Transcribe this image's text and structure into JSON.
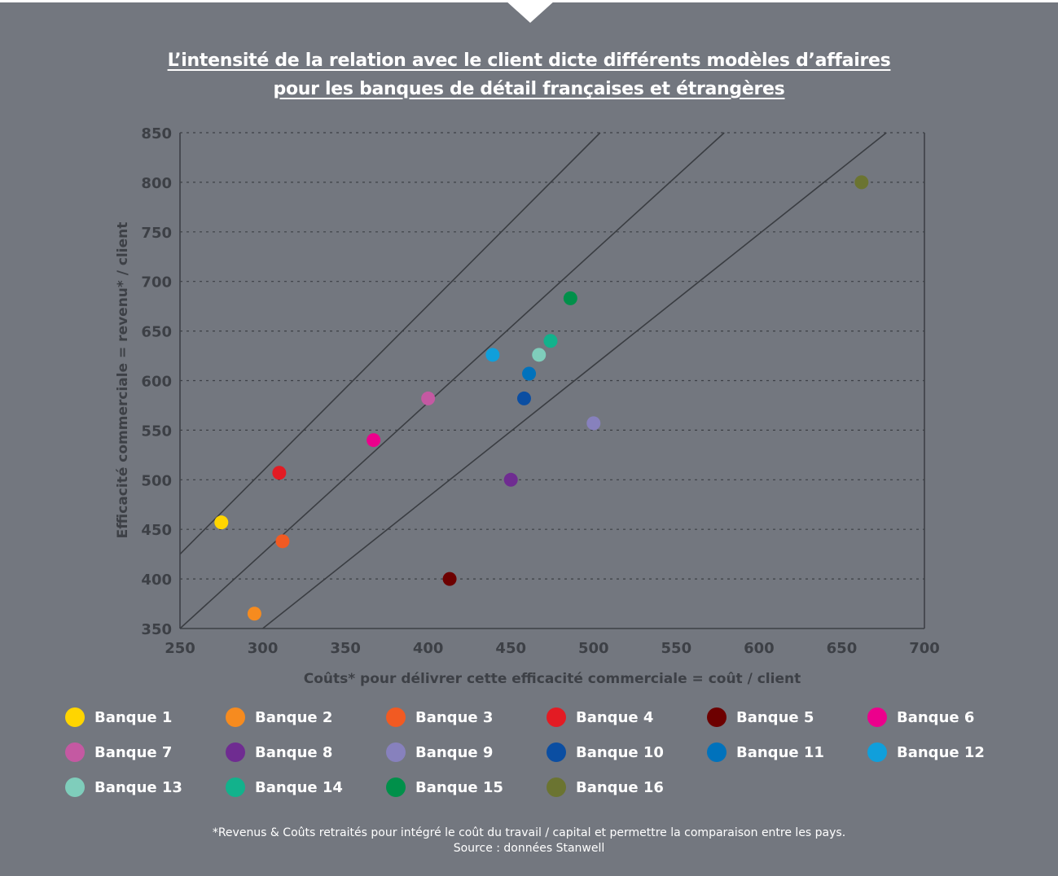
{
  "header": {
    "title_line1": "L’intensité de la relation avec le client dicte différents modèles d’affaires",
    "title_line2": "pour les banques de détail françaises et étrangères"
  },
  "colors": {
    "background": "#73777f",
    "axis": "#3d4046",
    "text": "#ffffff"
  },
  "chart_data": {
    "type": "scatter",
    "title": "L’intensité de la relation avec le client dicte différents modèles d’affaires pour les banques de détail françaises et étrangères",
    "xlabel": "Coûts* pour délivrer cette efficacité commerciale = coût / client",
    "ylabel": "Efficacité commerciale = revenu* / client",
    "xlim": [
      250,
      700
    ],
    "ylim": [
      350,
      850
    ],
    "xticks": [
      250,
      300,
      350,
      400,
      450,
      500,
      550,
      600,
      650,
      700
    ],
    "yticks": [
      350,
      400,
      450,
      500,
      550,
      600,
      650,
      700,
      750,
      800,
      850
    ],
    "grid": "horizontal-dotted",
    "legend_position": "bottom",
    "series": [
      {
        "name": "Banque 1",
        "color": "#ffd500",
        "x": 275,
        "y": 457
      },
      {
        "name": "Banque 2",
        "color": "#f68b1f",
        "x": 295,
        "y": 365
      },
      {
        "name": "Banque 3",
        "color": "#f15a22",
        "x": 312,
        "y": 438
      },
      {
        "name": "Banque 4",
        "color": "#e31b23",
        "x": 310,
        "y": 507
      },
      {
        "name": "Banque 5",
        "color": "#6d0000",
        "x": 413,
        "y": 400
      },
      {
        "name": "Banque 6",
        "color": "#ec008c",
        "x": 367,
        "y": 540
      },
      {
        "name": "Banque 7",
        "color": "#c459a2",
        "x": 400,
        "y": 582
      },
      {
        "name": "Banque 8",
        "color": "#6f2c91",
        "x": 450,
        "y": 500
      },
      {
        "name": "Banque 9",
        "color": "#8781bd",
        "x": 500,
        "y": 557
      },
      {
        "name": "Banque 10",
        "color": "#0b4ea2",
        "x": 458,
        "y": 582
      },
      {
        "name": "Banque 11",
        "color": "#0072bc",
        "x": 461,
        "y": 607
      },
      {
        "name": "Banque 12",
        "color": "#109fdb",
        "x": 439,
        "y": 626
      },
      {
        "name": "Banque 13",
        "color": "#7fcdbb",
        "x": 467,
        "y": 626
      },
      {
        "name": "Banque 14",
        "color": "#12b28c",
        "x": 474,
        "y": 640
      },
      {
        "name": "Banque 15",
        "color": "#00904a",
        "x": 486,
        "y": 683
      },
      {
        "name": "Banque 16",
        "color": "#6b7431",
        "x": 662,
        "y": 800
      }
    ],
    "reference_lines": [
      {
        "name": "ligne-1",
        "from": [
          250,
          425
        ],
        "to": [
          504,
          850
        ]
      },
      {
        "name": "ligne-2",
        "from": [
          250,
          350
        ],
        "to": [
          579,
          850
        ]
      },
      {
        "name": "ligne-3",
        "from": [
          300,
          350
        ],
        "to": [
          677,
          850
        ]
      }
    ]
  },
  "footer": {
    "note": "*Revenus & Coûts retraités pour intégré le coût du travail / capital et permettre la comparaison entre les pays.",
    "source": "Source : données Stanwell"
  }
}
